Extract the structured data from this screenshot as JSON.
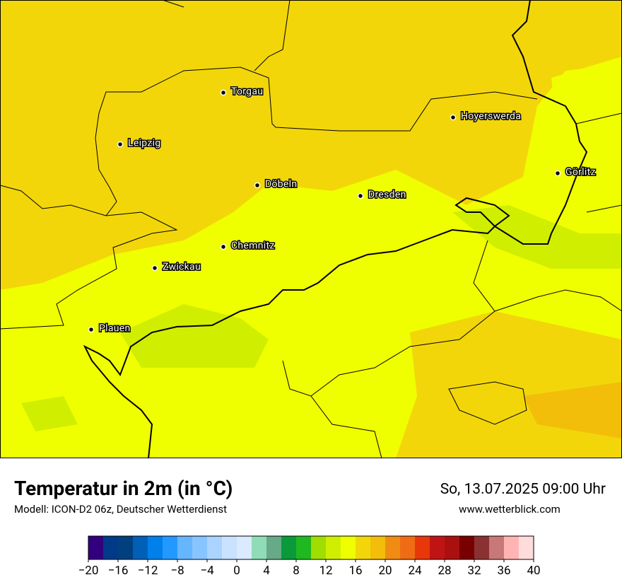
{
  "map": {
    "cities": [
      "Torgau",
      "Hoyerswerda",
      "Leipzig",
      "Görlitz",
      "Döbeln",
      "Dresden",
      "Chemnitz",
      "Zwickau",
      "Plauen"
    ]
  },
  "legend": {
    "title": "Temperatur in 2m (in °C)",
    "subtitle": "Modell: ICON-D2 06z, Deutscher Wetterdienst",
    "date": "So, 13.07.2025 09:00 Uhr",
    "website": "www.wetterblick.com"
  },
  "colorbar": {
    "range": [
      -20,
      40
    ],
    "colors": [
      "#32007f",
      "#003a88",
      "#00407e",
      "#0060b8",
      "#0080ea",
      "#2299ff",
      "#66b5ff",
      "#88c4ff",
      "#aad4ff",
      "#c8e2ff",
      "#daeaff",
      "#90dcb8",
      "#66aa88",
      "#0a9a3a",
      "#20b820",
      "#a0dd00",
      "#d0ee00",
      "#f0ff00",
      "#f2d60a",
      "#f2be0a",
      "#f08c14",
      "#f06c14",
      "#e8380a",
      "#c01414",
      "#aa1010",
      "#780000",
      "#8a3232",
      "#c87878",
      "#ffb4b4",
      "#ffdcdc"
    ],
    "ticks": [
      {
        "value": -20,
        "label": "−20"
      },
      {
        "value": -16,
        "label": "−16"
      },
      {
        "value": -12,
        "label": "−12"
      },
      {
        "value": -8,
        "label": "−8"
      },
      {
        "value": -4,
        "label": "−4"
      },
      0,
      4,
      8,
      12,
      16,
      20,
      24,
      28,
      32,
      36,
      40
    ]
  }
}
